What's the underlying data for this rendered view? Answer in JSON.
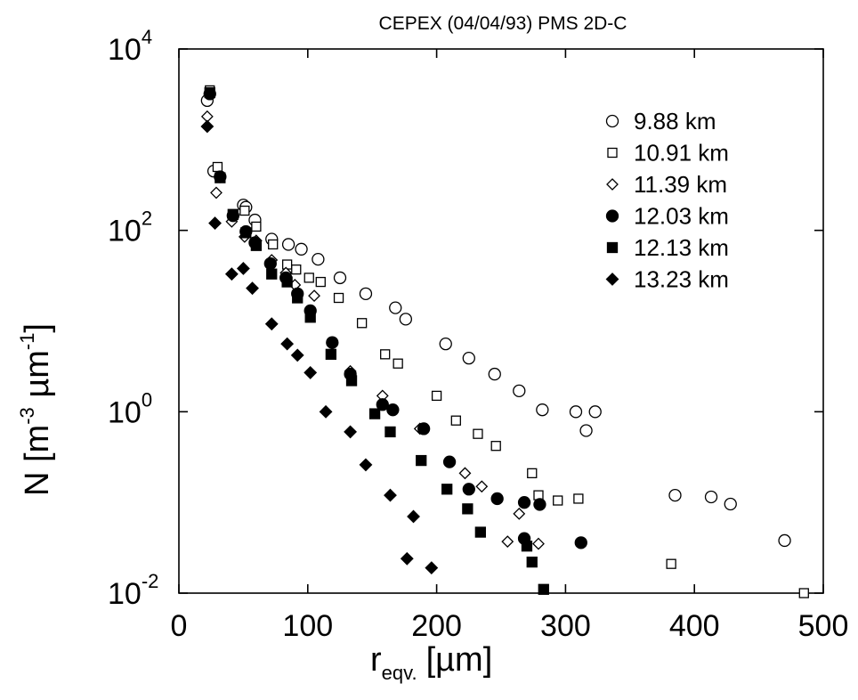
{
  "chart_data": {
    "type": "scatter",
    "title": "CEPEX (04/04/93) PMS 2D-C",
    "xlabel": {
      "main": "r",
      "sub": "eqv.",
      "unit": "[µm]"
    },
    "ylabel": {
      "main": "N [m",
      "sup1": "-3",
      "mid": " µm",
      "sup2": "-1",
      "end": "]"
    },
    "xlim": [
      0,
      500
    ],
    "ylim": [
      0.01,
      10000
    ],
    "yscale": "log",
    "xticks": [
      {
        "value": 0,
        "label": "0"
      },
      {
        "value": 100,
        "label": "100"
      },
      {
        "value": 200,
        "label": "200"
      },
      {
        "value": 300,
        "label": "300"
      },
      {
        "value": 400,
        "label": "400"
      },
      {
        "value": 500,
        "label": "500"
      }
    ],
    "yticks": [
      {
        "value": 0.01,
        "base": "10",
        "exp": "-2"
      },
      {
        "value": 1,
        "base": "10",
        "exp": "0"
      },
      {
        "value": 100,
        "base": "10",
        "exp": "2"
      },
      {
        "value": 10000,
        "base": "10",
        "exp": "4"
      }
    ],
    "legend_position": "top-right",
    "series": [
      {
        "name": "9.88 km",
        "marker": "open-circle",
        "points": [
          [
            22,
            2700
          ],
          [
            27,
            450
          ],
          [
            50,
            190
          ],
          [
            52,
            180
          ],
          [
            59,
            130
          ],
          [
            72,
            80
          ],
          [
            85,
            70
          ],
          [
            95,
            62
          ],
          [
            108,
            48
          ],
          [
            125,
            30
          ],
          [
            145,
            20
          ],
          [
            168,
            14
          ],
          [
            176,
            10.5
          ],
          [
            207,
            5.6
          ],
          [
            225,
            3.9
          ],
          [
            245,
            2.6
          ],
          [
            264,
            1.7
          ],
          [
            282,
            1.05
          ],
          [
            308,
            1.0
          ],
          [
            316,
            0.62
          ],
          [
            323,
            1.0
          ],
          [
            385,
            0.12
          ],
          [
            413,
            0.115
          ],
          [
            428,
            0.096
          ],
          [
            470,
            0.038
          ]
        ]
      },
      {
        "name": "10.91 km",
        "marker": "open-square",
        "points": [
          [
            24,
            3500
          ],
          [
            30,
            500
          ],
          [
            51,
            165
          ],
          [
            60,
            110
          ],
          [
            73,
            70
          ],
          [
            84,
            42
          ],
          [
            91,
            37
          ],
          [
            101,
            30
          ],
          [
            110,
            27
          ],
          [
            124,
            18
          ],
          [
            142,
            9.5
          ],
          [
            160,
            4.3
          ],
          [
            170,
            3.4
          ],
          [
            200,
            1.5
          ],
          [
            215,
            0.8
          ],
          [
            232,
            0.57
          ],
          [
            246,
            0.42
          ],
          [
            274,
            0.21
          ],
          [
            279,
            0.12
          ],
          [
            294,
            0.105
          ],
          [
            310,
            0.11
          ],
          [
            382,
            0.021
          ],
          [
            485,
            0.01
          ]
        ]
      },
      {
        "name": "11.39 km",
        "marker": "open-diamond",
        "points": [
          [
            22,
            1800
          ],
          [
            29,
            260
          ],
          [
            41,
            125
          ],
          [
            51,
            85
          ],
          [
            60,
            77
          ],
          [
            72,
            47
          ],
          [
            83,
            34
          ],
          [
            90,
            25
          ],
          [
            105,
            19
          ],
          [
            119,
            5.6
          ],
          [
            133,
            2.8
          ],
          [
            158,
            1.5
          ],
          [
            187,
            0.65
          ],
          [
            222,
            0.21
          ],
          [
            235,
            0.15
          ],
          [
            255,
            0.037
          ],
          [
            264,
            0.075
          ],
          [
            279,
            0.035
          ]
        ]
      },
      {
        "name": "12.03 km",
        "marker": "filled-circle",
        "points": [
          [
            24,
            3200
          ],
          [
            32,
            390
          ],
          [
            42,
            145
          ],
          [
            52,
            97
          ],
          [
            59,
            73
          ],
          [
            71,
            43
          ],
          [
            83,
            30
          ],
          [
            92,
            20
          ],
          [
            102,
            13
          ],
          [
            119,
            5.8
          ],
          [
            133,
            2.6
          ],
          [
            158,
            1.2
          ],
          [
            166,
            1.05
          ],
          [
            190,
            0.65
          ],
          [
            210,
            0.28
          ],
          [
            225,
            0.14
          ],
          [
            247,
            0.11
          ],
          [
            268,
            0.1
          ],
          [
            280,
            0.095
          ],
          [
            312,
            0.036
          ],
          [
            268,
            0.04
          ]
        ]
      },
      {
        "name": "12.13 km",
        "marker": "filled-square",
        "points": [
          [
            24,
            3300
          ],
          [
            32,
            380
          ],
          [
            42,
            150
          ],
          [
            52,
            94
          ],
          [
            60,
            68
          ],
          [
            72,
            33
          ],
          [
            84,
            27
          ],
          [
            92,
            18
          ],
          [
            102,
            11
          ],
          [
            118,
            4.3
          ],
          [
            134,
            2.2
          ],
          [
            152,
            0.95
          ],
          [
            164,
            0.6
          ],
          [
            188,
            0.29
          ],
          [
            208,
            0.14
          ],
          [
            224,
            0.085
          ],
          [
            234,
            0.047
          ],
          [
            270,
            0.033
          ],
          [
            274,
            0.022
          ],
          [
            283,
            0.011
          ]
        ]
      },
      {
        "name": "13.23 km",
        "marker": "filled-diamond",
        "points": [
          [
            22,
            1400
          ],
          [
            28,
            120
          ],
          [
            41,
            33
          ],
          [
            50,
            38
          ],
          [
            57,
            23
          ],
          [
            72,
            9.3
          ],
          [
            84,
            5.6
          ],
          [
            92,
            4.2
          ],
          [
            102,
            2.7
          ],
          [
            114,
            1.0
          ],
          [
            133,
            0.6
          ],
          [
            145,
            0.26
          ],
          [
            164,
            0.12
          ],
          [
            182,
            0.07
          ],
          [
            177,
            0.024
          ],
          [
            196,
            0.019
          ]
        ]
      }
    ]
  }
}
